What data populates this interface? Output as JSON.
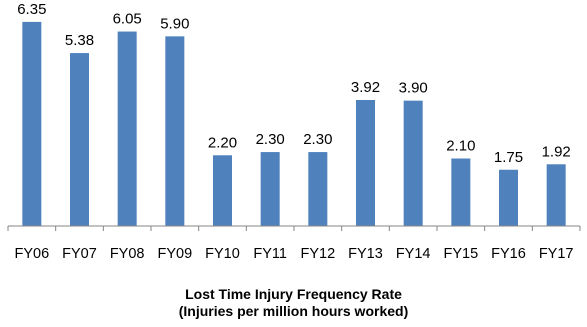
{
  "chart_data": {
    "type": "bar",
    "title": "Lost Time Injury Frequency Rate",
    "subtitle": "(Injuries per million hours worked)",
    "categories": [
      "FY06",
      "FY07",
      "FY08",
      "FY09",
      "FY10",
      "FY11",
      "FY12",
      "FY13",
      "FY14",
      "FY15",
      "FY16",
      "FY17"
    ],
    "values": [
      6.35,
      5.38,
      6.05,
      5.9,
      2.2,
      2.3,
      2.3,
      3.92,
      3.9,
      2.1,
      1.75,
      1.92
    ],
    "value_labels": [
      "6.35",
      "5.38",
      "6.05",
      "5.90",
      "2.20",
      "2.30",
      "2.30",
      "3.92",
      "3.90",
      "2.10",
      "1.75",
      "1.92"
    ],
    "ylim": [
      0,
      7
    ],
    "bar_color": "#4F81BD",
    "axis_color": "#868686",
    "grid": false,
    "legend": "none"
  }
}
